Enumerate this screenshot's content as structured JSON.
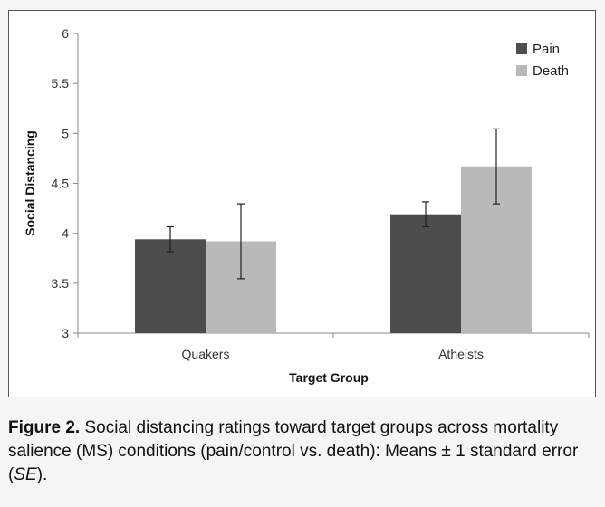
{
  "chart_data": {
    "type": "bar",
    "categories": [
      "Quakers",
      "Atheists"
    ],
    "series": [
      {
        "name": "Pain",
        "values": [
          3.94,
          4.19
        ],
        "error": [
          0.125,
          0.125
        ],
        "color": "#4d4d4d"
      },
      {
        "name": "Death",
        "values": [
          3.92,
          4.67
        ],
        "error": [
          0.375,
          0.375
        ],
        "color": "#b9b9b9"
      }
    ],
    "xlabel": "Target Group",
    "ylabel": "Social Distancing",
    "ylim": [
      3,
      6
    ],
    "yticks": [
      "3",
      "3.5",
      "4",
      "4.5",
      "5",
      "5.5",
      "6"
    ],
    "grid": false,
    "legend_position": "top-right"
  },
  "caption": {
    "label": "Figure 2.",
    "text": "Social distancing ratings toward target groups across mortality salience (MS) conditions (pain/control vs. death): Means ± 1 standard error (",
    "italic": "SE",
    "end": ")."
  }
}
